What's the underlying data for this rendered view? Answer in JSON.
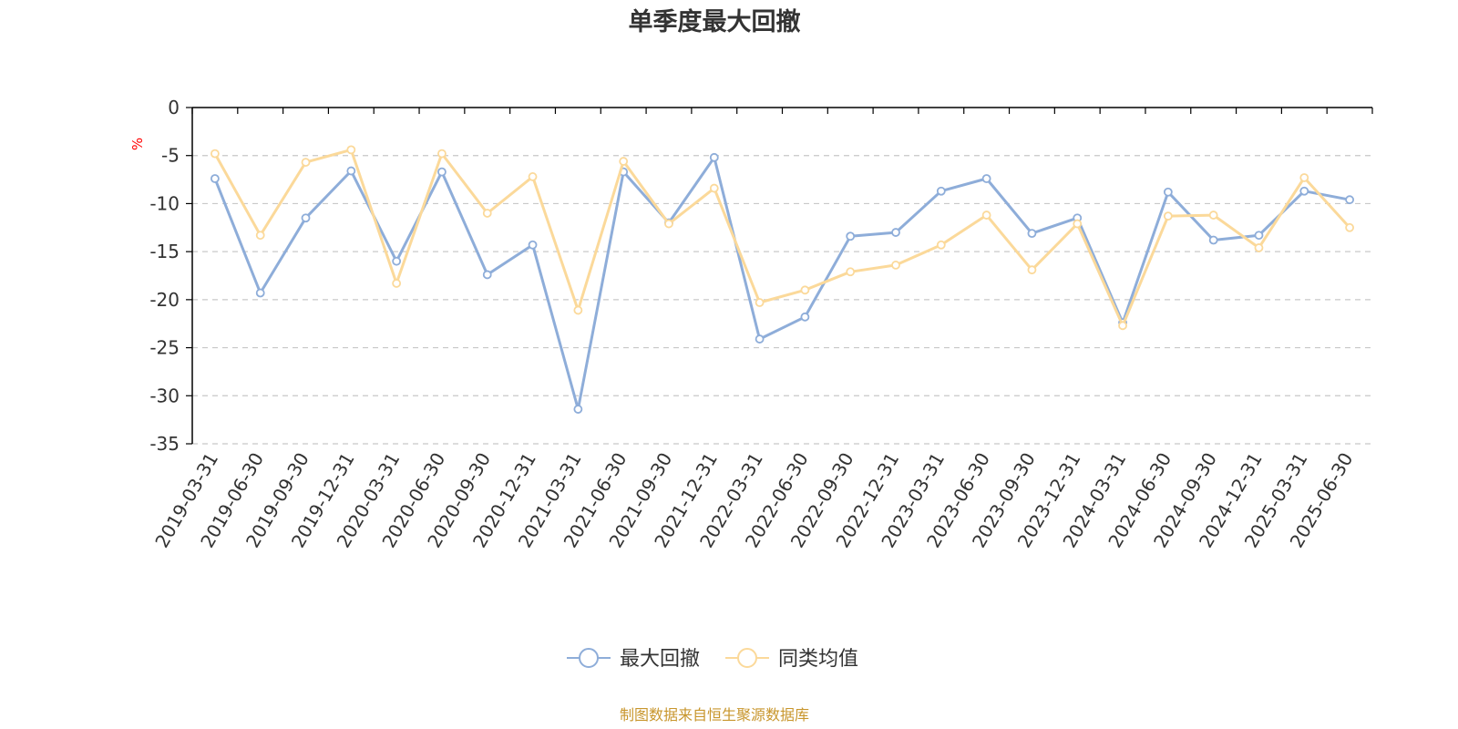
{
  "chart_data": {
    "type": "line",
    "title": "单季度最大回撤",
    "ylabel": "%",
    "ylim": [
      -35,
      0
    ],
    "yticks": [
      0,
      -5,
      -10,
      -15,
      -20,
      -25,
      -30,
      -35
    ],
    "grid": true,
    "legend_position": "bottom",
    "categories": [
      "2019-03-31",
      "2019-06-30",
      "2019-09-30",
      "2019-12-31",
      "2020-03-31",
      "2020-06-30",
      "2020-09-30",
      "2020-12-31",
      "2021-03-31",
      "2021-06-30",
      "2021-09-30",
      "2021-12-31",
      "2022-03-31",
      "2022-06-30",
      "2022-09-30",
      "2022-12-31",
      "2023-03-31",
      "2023-06-30",
      "2023-09-30",
      "2023-12-31",
      "2024-03-31",
      "2024-06-30",
      "2024-09-30",
      "2024-12-31",
      "2025-03-31",
      "2025-06-30"
    ],
    "series": [
      {
        "name": "最大回撤",
        "color": "#8eadd9",
        "values": [
          -7.4,
          -19.3,
          -11.5,
          -6.6,
          -16.0,
          -6.7,
          -17.4,
          -14.3,
          -31.4,
          -6.7,
          -12.0,
          -5.2,
          -24.1,
          -21.8,
          -13.4,
          -13.0,
          -8.7,
          -7.4,
          -13.1,
          -11.5,
          -22.4,
          -8.8,
          -13.8,
          -13.3,
          -8.7,
          -9.6
        ]
      },
      {
        "name": "同类均值",
        "color": "#fbd99a",
        "values": [
          -4.8,
          -13.3,
          -5.7,
          -4.4,
          -18.3,
          -4.8,
          -11.0,
          -7.2,
          -21.1,
          -5.6,
          -12.1,
          -8.4,
          -20.3,
          -19.0,
          -17.1,
          -16.4,
          -14.3,
          -11.2,
          -16.9,
          -12.1,
          -22.7,
          -11.3,
          -11.2,
          -14.6,
          -7.3,
          -12.5
        ]
      }
    ]
  },
  "source_text": "制图数据来自恒生聚源数据库",
  "colors": {
    "axis": "#000000",
    "grid": "#c8c8c8",
    "unit_label": "#ff0000",
    "source_text": "#c8962d"
  }
}
